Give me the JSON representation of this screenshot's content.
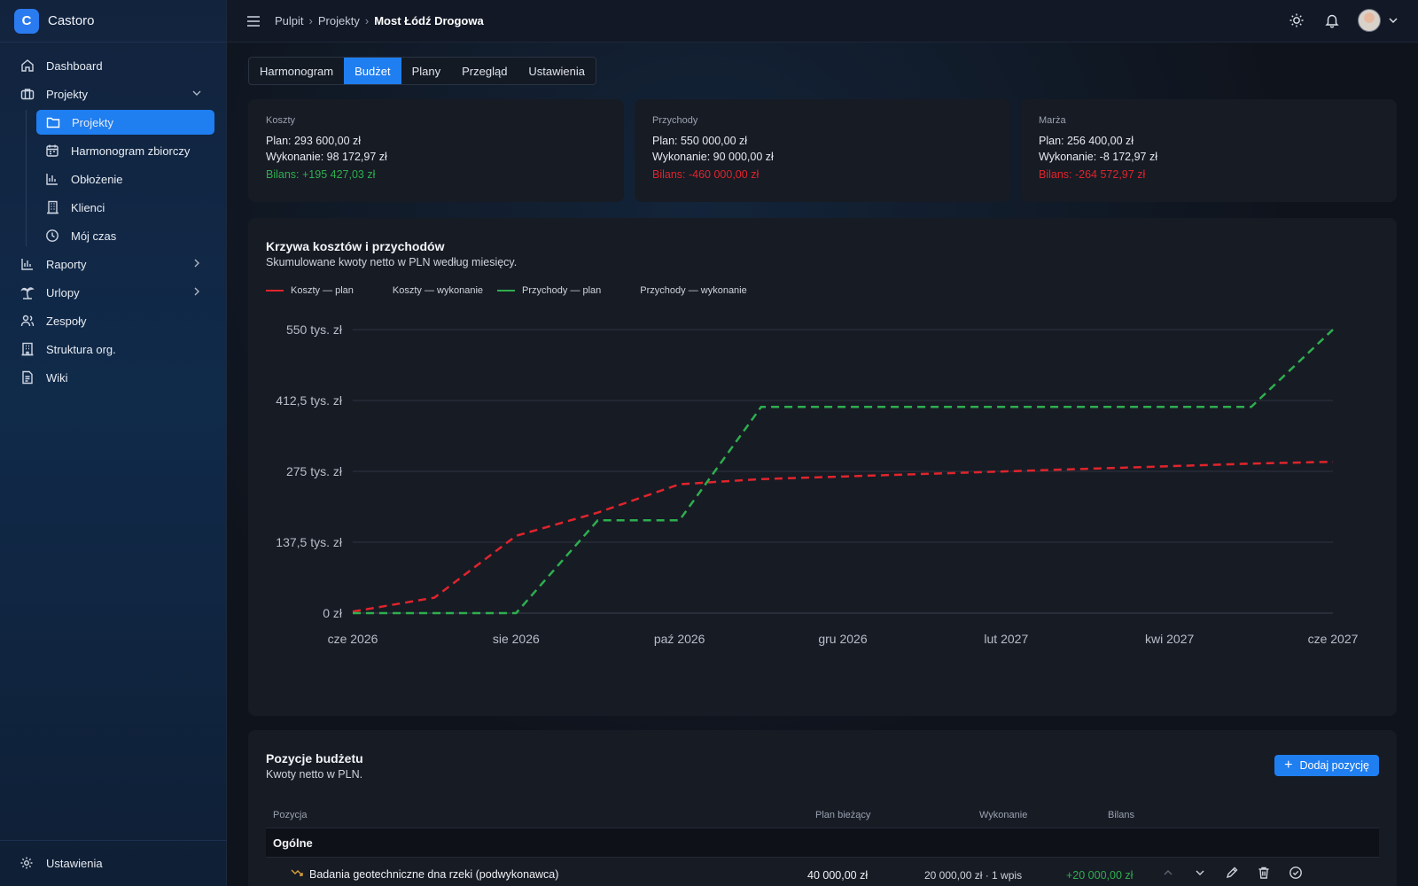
{
  "app": {
    "name": "Castoro",
    "logo_letter": "C"
  },
  "sidebar": {
    "items": [
      {
        "label": "Dashboard",
        "icon": "home-icon"
      },
      {
        "label": "Projekty",
        "icon": "briefcase-icon",
        "expanded": true
      },
      {
        "label": "Raporty",
        "icon": "bar-chart-icon"
      },
      {
        "label": "Urlopy",
        "icon": "palm-tree-icon"
      },
      {
        "label": "Zespoły",
        "icon": "users-icon"
      },
      {
        "label": "Struktura org.",
        "icon": "org-structure-icon"
      },
      {
        "label": "Wiki",
        "icon": "document-icon"
      }
    ],
    "sub_items": [
      {
        "label": "Projekty",
        "icon": "folder-icon",
        "active": true
      },
      {
        "label": "Harmonogram zbiorczy",
        "icon": "calendar-icon"
      },
      {
        "label": "Obłożenie",
        "icon": "bar-chart-icon"
      },
      {
        "label": "Klienci",
        "icon": "building-icon"
      },
      {
        "label": "Mój czas",
        "icon": "clock-icon"
      }
    ],
    "settings_label": "Ustawienia"
  },
  "breadcrumb": {
    "items": [
      "Pulpit",
      "Projekty"
    ],
    "current": "Most Łódź Drogowa"
  },
  "tabs": [
    {
      "label": "Harmonogram"
    },
    {
      "label": "Budżet",
      "active": true
    },
    {
      "label": "Plany"
    },
    {
      "label": "Przegląd"
    },
    {
      "label": "Ustawienia"
    }
  ],
  "summary": {
    "costs": {
      "label": "Koszty",
      "plan": "Plan: 293 600,00 zł",
      "actual": "Wykonanie: 98 172,97 zł",
      "balance": "Bilans: +195 427,03 zł",
      "balance_color": "#2eae4f"
    },
    "revenue": {
      "label": "Przychody",
      "plan": "Plan: 550 000,00 zł",
      "actual": "Wykonanie: 90 000,00 zł",
      "balance": "Bilans: -460 000,00 zł",
      "balance_color": "#e0242c"
    },
    "margin": {
      "label": "Marża",
      "plan": "Plan: 256 400,00 zł",
      "actual": "Wykonanie: -8 172,97 zł",
      "balance": "Bilans: -264 572,97 zł",
      "balance_color": "#e0242c"
    }
  },
  "chart_card": {
    "title": "Krzywa kosztów i przychodów",
    "subtitle": "Skumulowane kwoty netto w PLN według miesięcy."
  },
  "chart_data": {
    "type": "line",
    "x_tick_labels": [
      "cze 2026",
      "sie 2026",
      "paź 2026",
      "gru 2026",
      "lut 2027",
      "kwi 2027",
      "cze 2027"
    ],
    "y_tick_labels": [
      "0 zł",
      "137,5 tys. zł",
      "275 tys. zł",
      "412,5 tys. zł",
      "550 tys. zł"
    ],
    "ylim": [
      0,
      550000
    ],
    "x_months": [
      "2026-06",
      "2026-07",
      "2026-08",
      "2026-09",
      "2026-10",
      "2026-11",
      "2026-12",
      "2027-01",
      "2027-02",
      "2027-03",
      "2027-04",
      "2027-05",
      "2027-06"
    ],
    "legend_position": "top-left",
    "grid": true,
    "series": [
      {
        "name": "Koszty — plan",
        "color": "#e0242c",
        "dashed": true,
        "values": [
          3000,
          30000,
          150000,
          195000,
          250000,
          260000,
          265000,
          270000,
          275000,
          280000,
          285000,
          290000,
          293600
        ]
      },
      {
        "name": "Koszty — wykonanie",
        "color": "#e0242c",
        "dashed": false,
        "values": []
      },
      {
        "name": "Przychody — plan",
        "color": "#2eae4f",
        "dashed": true,
        "values": [
          0,
          0,
          0,
          180000,
          180000,
          400000,
          400000,
          400000,
          400000,
          400000,
          400000,
          400000,
          550000
        ]
      },
      {
        "name": "Przychody — wykonanie",
        "color": "#2eae4f",
        "dashed": false,
        "values": []
      }
    ]
  },
  "budget": {
    "title": "Pozycje budżetu",
    "subtitle": "Kwoty netto w PLN.",
    "add_label": "Dodaj pozycję",
    "columns": [
      "Pozycja",
      "Plan bieżący",
      "Wykonanie",
      "Bilans"
    ],
    "groups": [
      {
        "name": "Ogólne",
        "rows": [
          {
            "name": "Badania geotechniczne dna rzeki (podwykonawca)",
            "plan": "40 000,00 zł",
            "actual": "20 000,00 zł · 1 wpis",
            "balance": "+20 000,00 zł"
          }
        ]
      }
    ]
  }
}
